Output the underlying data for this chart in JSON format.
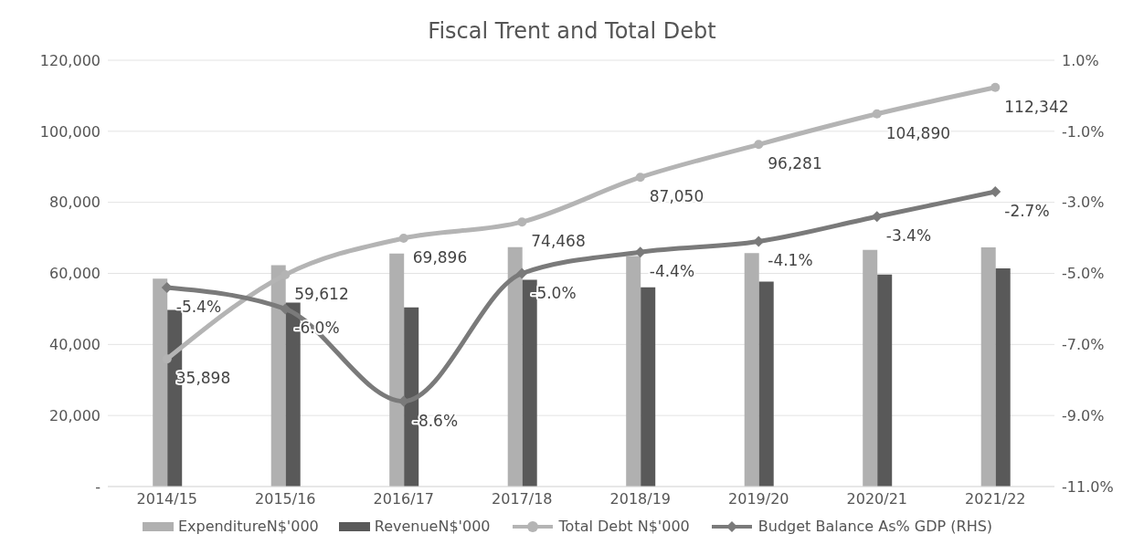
{
  "chart_data": {
    "type": "bar",
    "title": "Fiscal Trent and Total Debt",
    "categories": [
      "2014/15",
      "2015/16",
      "2016/17",
      "2017/18",
      "2018/19",
      "2019/20",
      "2020/21",
      "2021/22"
    ],
    "series": [
      {
        "name": "ExpenditureN$'000",
        "color": "#b0b0b0",
        "values": [
          58500,
          62300,
          65600,
          67400,
          64900,
          65700,
          66600,
          67300
        ]
      },
      {
        "name": "RevenueN$'000",
        "color": "#595959",
        "values": [
          49700,
          51800,
          50400,
          58200,
          56100,
          57700,
          59700,
          61400
        ]
      },
      {
        "name": "Total Debt N$'000",
        "type": "line",
        "color": "#b4b4b4",
        "marker": "circle",
        "values": [
          35898,
          59612,
          69896,
          74468,
          87050,
          96281,
          104890,
          112342
        ],
        "value_labels": [
          "35,898",
          "59,612",
          "69,896",
          "74,468",
          "87,050",
          "96,281",
          "104,890",
          "112,342"
        ]
      },
      {
        "name": "Budget Balance As% GDP (RHS)",
        "type": "line",
        "axis": "y2",
        "color": "#7a7a7a",
        "marker": "diamond",
        "values": [
          -5.4,
          -6.0,
          -8.6,
          -5.0,
          -4.4,
          -4.1,
          -3.4,
          -2.7
        ],
        "value_labels": [
          "-5.4%",
          "-6.0%",
          "-8.6%",
          "-5.0%",
          "-4.4%",
          "-4.1%",
          "-3.4%",
          "-2.7%"
        ]
      }
    ],
    "ylim": [
      0,
      120000
    ],
    "yticks": [
      {
        "value": 0,
        "label": "-"
      },
      {
        "value": 20000,
        "label": "20,000"
      },
      {
        "value": 40000,
        "label": "40,000"
      },
      {
        "value": 60000,
        "label": "60,000"
      },
      {
        "value": 80000,
        "label": "80,000"
      },
      {
        "value": 100000,
        "label": "100,000"
      },
      {
        "value": 120000,
        "label": "120,000"
      }
    ],
    "y2lim": [
      -11,
      1
    ],
    "y2ticks": [
      {
        "value": -11,
        "label": "-11.0%"
      },
      {
        "value": -9,
        "label": "-9.0%"
      },
      {
        "value": -7,
        "label": "-7.0%"
      },
      {
        "value": -5,
        "label": "-5.0%"
      },
      {
        "value": -3,
        "label": "-3.0%"
      },
      {
        "value": -1,
        "label": "-1.0%"
      },
      {
        "value": 1,
        "label": "1.0%"
      }
    ],
    "grid": "y",
    "legend": "bottom"
  }
}
